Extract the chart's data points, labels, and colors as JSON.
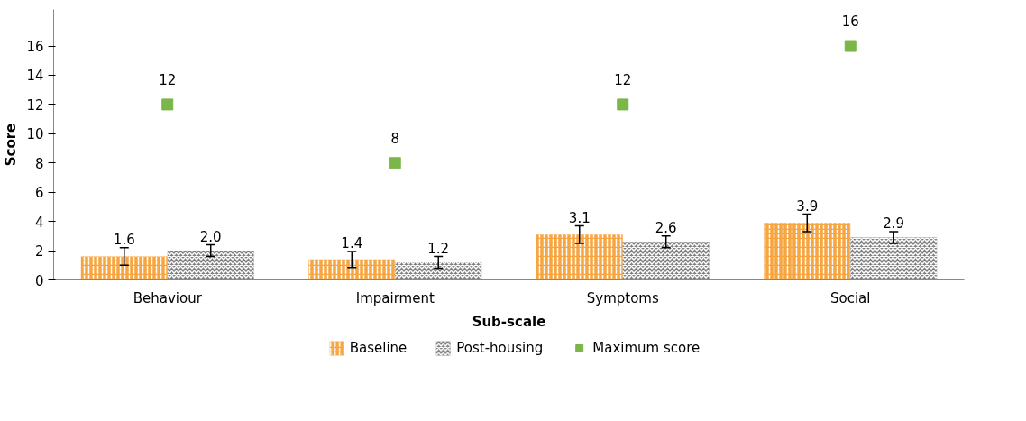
{
  "chart_data": {
    "type": "bar",
    "xlabel": "Sub-scale",
    "ylabel": "Score",
    "categories": [
      "Behaviour",
      "Impairment",
      "Symptoms",
      "Social"
    ],
    "series": [
      {
        "name": "Baseline",
        "color": "#f7a541",
        "values": [
          1.6,
          1.4,
          3.1,
          3.9
        ],
        "errors": [
          0.6,
          0.55,
          0.6,
          0.6
        ],
        "value_labels": [
          "1.6",
          "1.4",
          "3.1",
          "3.9"
        ]
      },
      {
        "name": "Post-housing",
        "color": "#7f7f7f",
        "values": [
          2.0,
          1.2,
          2.6,
          2.9
        ],
        "errors": [
          0.4,
          0.4,
          0.4,
          0.4
        ],
        "value_labels": [
          "2.0",
          "1.2",
          "2.6",
          "2.9"
        ]
      },
      {
        "name": "Maximum score",
        "type": "scatter",
        "marker": "square",
        "color": "#7ab648",
        "values": [
          12,
          8,
          12,
          16
        ],
        "value_labels": [
          "12",
          "8",
          "12",
          "16"
        ]
      }
    ],
    "ylim": [
      0,
      18.5
    ],
    "yticks": [
      0,
      2,
      4,
      6,
      8,
      10,
      12,
      14,
      16
    ],
    "legend": "bottom"
  }
}
